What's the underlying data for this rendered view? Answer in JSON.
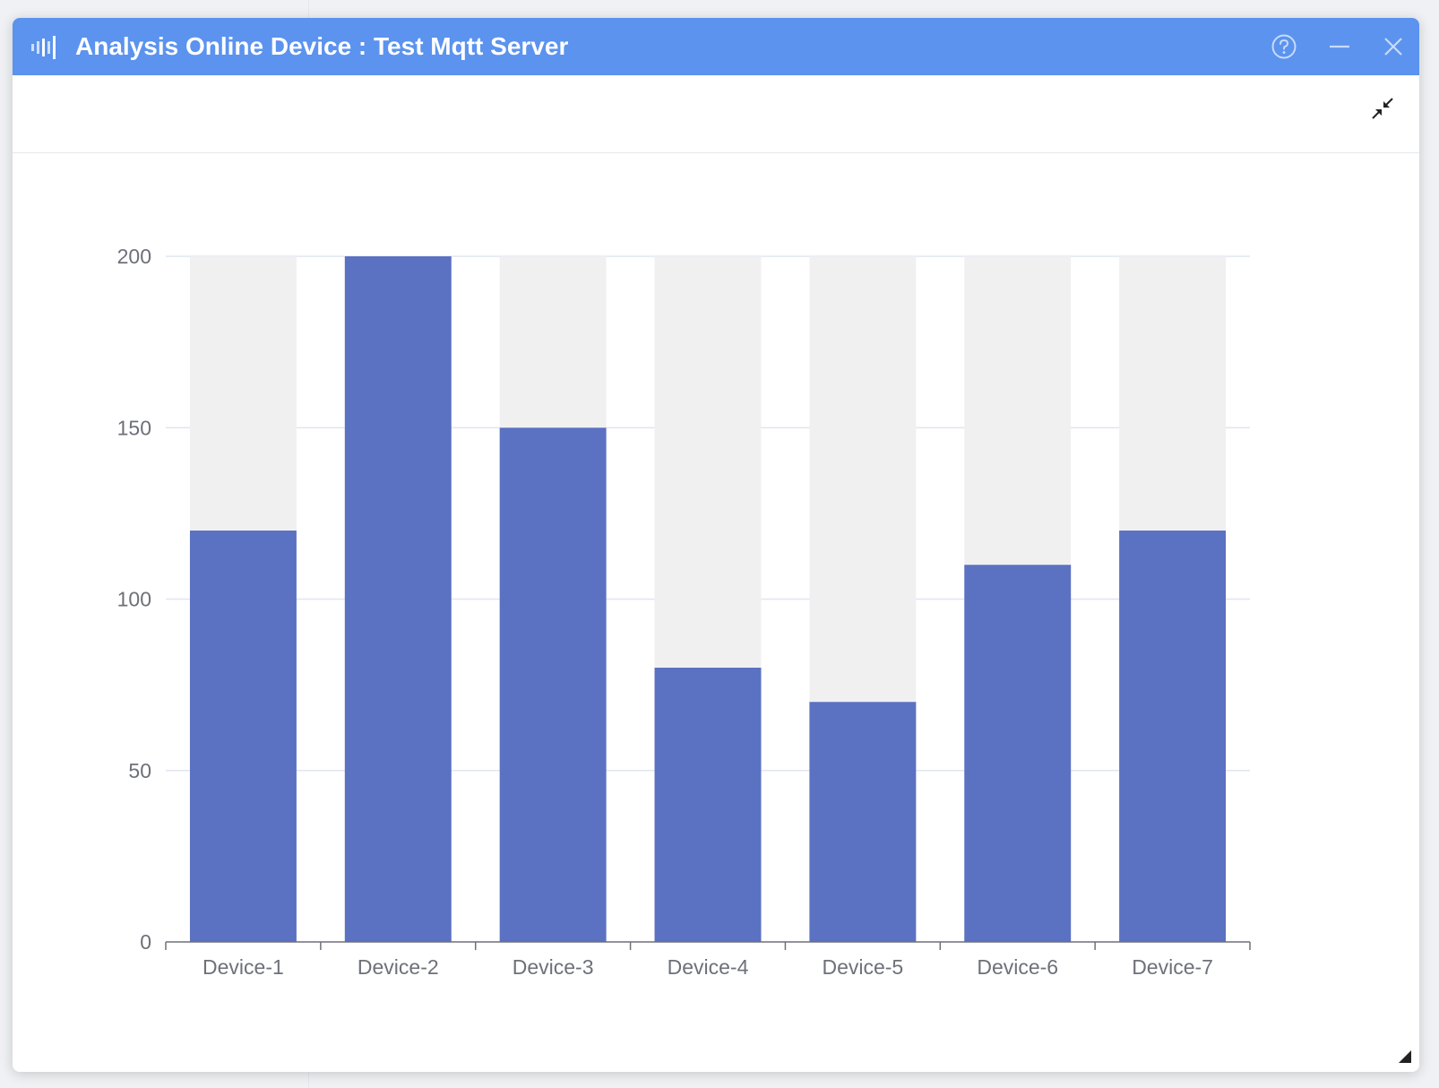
{
  "window": {
    "title": "Analysis Online Device : Test Mqtt Server",
    "icons": {
      "app": "signal-bars-icon",
      "help": "help-circle-icon",
      "minimize": "minimize-icon",
      "close": "close-icon",
      "collapse": "collapse-arrows-icon",
      "resize": "resize-corner-icon"
    }
  },
  "colors": {
    "titlebar": "#5b93ee",
    "bar": "#5b71c1",
    "bar_background": "#f0f0f0",
    "grid": "#e0e6f1",
    "axis_text": "#6e7079"
  },
  "chart_data": {
    "type": "bar",
    "title": "",
    "xlabel": "",
    "ylabel": "",
    "categories": [
      "Device-1",
      "Device-2",
      "Device-3",
      "Device-4",
      "Device-5",
      "Device-6",
      "Device-7"
    ],
    "values": [
      120,
      200,
      150,
      80,
      70,
      110,
      120
    ],
    "ylim": [
      0,
      200
    ],
    "yticks": [
      0,
      50,
      100,
      150,
      200
    ],
    "show_background": true,
    "grid": true,
    "legend": "none"
  }
}
